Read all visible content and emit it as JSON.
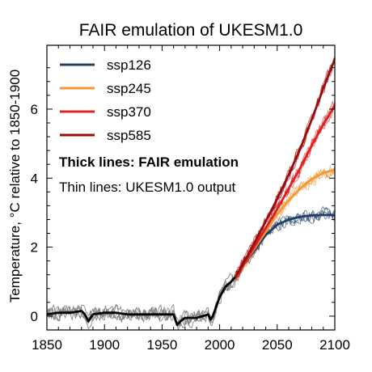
{
  "chart_data": {
    "type": "line",
    "title": "FAIR emulation of UKESM1.0",
    "xlabel": "",
    "ylabel": "Temperature, °C relative to 1850-1900",
    "xlim": [
      1850,
      2100
    ],
    "ylim": [
      -0.4,
      7.85
    ],
    "xticks": [
      1850,
      1900,
      1950,
      2000,
      2050,
      2100
    ],
    "yticks": [
      0,
      2,
      4,
      6
    ],
    "legend_position": "top-left",
    "annotations": [
      "Thick lines: FAIR emulation",
      "Thin lines: UKESM1.0 output"
    ],
    "colors": {
      "historical": "#000000",
      "historical_thin": "#7a7a7a",
      "ssp126": "#1f3f66",
      "ssp245": "#f29a38",
      "ssp370": "#e02020",
      "ssp585": "#9b0d0d"
    },
    "historical_fair": {
      "x": [
        1850,
        1860,
        1870,
        1880,
        1883,
        1886,
        1890,
        1900,
        1910,
        1920,
        1930,
        1940,
        1950,
        1960,
        1963,
        1966,
        1970,
        1980,
        1990,
        1992,
        1994,
        2000,
        2005,
        2010,
        2014
      ],
      "y": [
        0.05,
        0.1,
        0.1,
        0.15,
        0.05,
        -0.15,
        0.05,
        0.1,
        0.1,
        0.05,
        0.05,
        0.05,
        0.05,
        0.05,
        -0.25,
        -0.15,
        -0.05,
        -0.05,
        0.05,
        -0.1,
        0.0,
        0.55,
        0.85,
        1.0,
        1.15
      ]
    },
    "series": [
      {
        "name": "ssp126",
        "x": [
          2014,
          2020,
          2030,
          2040,
          2050,
          2060,
          2070,
          2080,
          2090,
          2100
        ],
        "y": [
          1.15,
          1.45,
          1.9,
          2.35,
          2.65,
          2.8,
          2.88,
          2.92,
          2.93,
          2.93
        ]
      },
      {
        "name": "ssp245",
        "x": [
          2014,
          2020,
          2030,
          2040,
          2050,
          2060,
          2070,
          2080,
          2090,
          2100
        ],
        "y": [
          1.15,
          1.45,
          1.95,
          2.45,
          2.95,
          3.35,
          3.7,
          3.98,
          4.15,
          4.25
        ]
      },
      {
        "name": "ssp370",
        "x": [
          2014,
          2020,
          2030,
          2040,
          2050,
          2060,
          2070,
          2080,
          2090,
          2100
        ],
        "y": [
          1.15,
          1.45,
          2.0,
          2.55,
          3.1,
          3.7,
          4.3,
          4.95,
          5.55,
          6.1
        ]
      },
      {
        "name": "ssp585",
        "x": [
          2014,
          2020,
          2030,
          2040,
          2050,
          2060,
          2070,
          2080,
          2090,
          2100
        ],
        "y": [
          1.15,
          1.5,
          2.1,
          2.75,
          3.4,
          4.1,
          4.85,
          5.7,
          6.6,
          7.45
        ]
      }
    ]
  }
}
